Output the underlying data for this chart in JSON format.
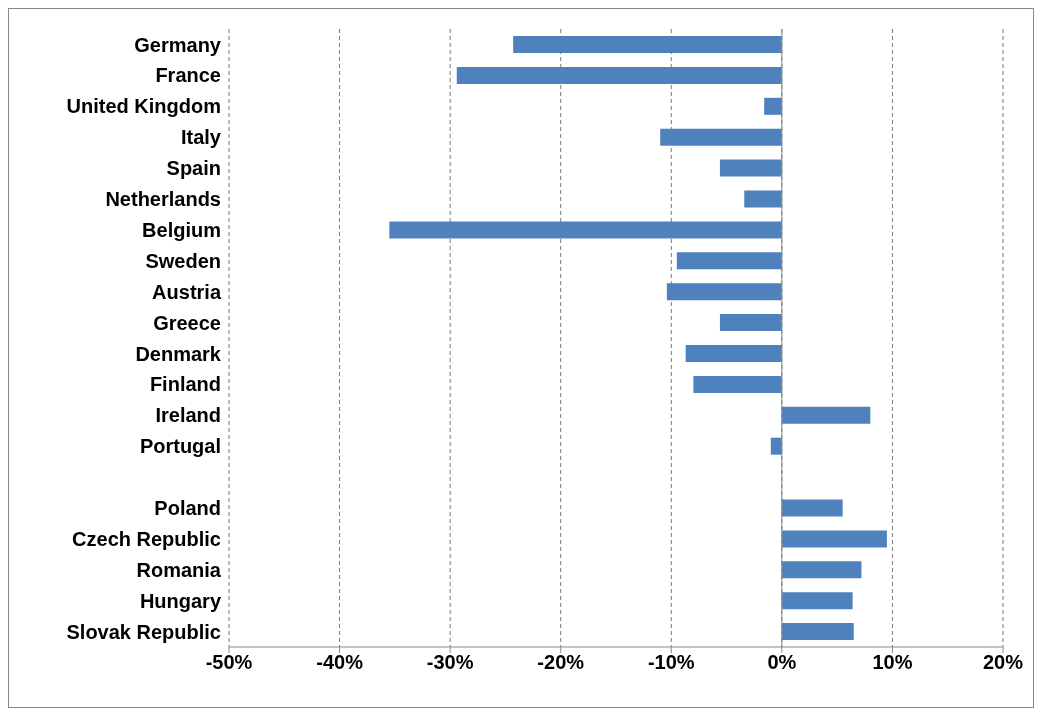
{
  "chart_data": {
    "type": "bar",
    "orientation": "horizontal",
    "categories": [
      "Germany",
      "France",
      "United Kingdom",
      "Italy",
      "Spain",
      "Netherlands",
      "Belgium",
      "Sweden",
      "Austria",
      "Greece",
      "Denmark",
      "Finland",
      "Ireland",
      "Portugal",
      null,
      "Poland",
      "Czech Republic",
      "Romania",
      "Hungary",
      "Slovak Republic"
    ],
    "values": [
      -24.3,
      -29.4,
      -1.6,
      -11.0,
      -5.6,
      -3.4,
      -35.5,
      -9.5,
      -10.4,
      -5.6,
      -8.7,
      -8.0,
      8.0,
      -1.0,
      null,
      5.5,
      9.5,
      7.2,
      6.4,
      6.5
    ],
    "color": "#4f81bd",
    "xlim": [
      -50,
      20
    ],
    "xticks": [
      {
        "value": -50,
        "label": "-50%"
      },
      {
        "value": -40,
        "label": "-40%"
      },
      {
        "value": -30,
        "label": "-30%"
      },
      {
        "value": -20,
        "label": "-20%"
      },
      {
        "value": -10,
        "label": "-10%"
      },
      {
        "value": 0,
        "label": "0%"
      },
      {
        "value": 10,
        "label": "10%"
      },
      {
        "value": 20,
        "label": "20%"
      }
    ],
    "grid": "x"
  }
}
